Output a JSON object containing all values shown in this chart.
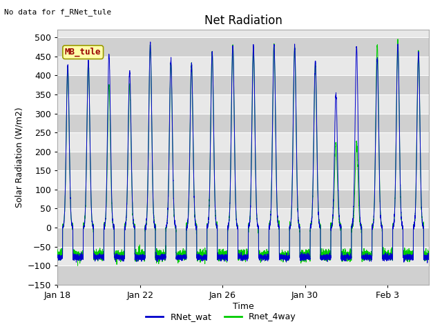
{
  "title": "Net Radiation",
  "subtitle": "No data for f_RNet_tule",
  "xlabel": "Time",
  "ylabel": "Solar Radiation (W/m2)",
  "ylim": [
    -150,
    520
  ],
  "yticks": [
    -150,
    -100,
    -50,
    0,
    50,
    100,
    150,
    200,
    250,
    300,
    350,
    400,
    450,
    500
  ],
  "xtick_labels": [
    "Jan 18",
    "Jan 22",
    "Jan 26",
    "Jan 30",
    "Feb 3"
  ],
  "xtick_positions": [
    0,
    4,
    8,
    12,
    16
  ],
  "legend_entries": [
    "RNet_wat",
    "Rnet_4way"
  ],
  "line_color_blue": "#0000cc",
  "line_color_green": "#00cc00",
  "fig_bg_color": "#ffffff",
  "plot_bg_color": "#e8e8e8",
  "stripe_color": "#d0d0d0",
  "grid_color": "#ffffff",
  "box_facecolor": "#ffffaa",
  "box_edgecolor": "#999900",
  "box_text_color": "#990000",
  "box_label": "MB_tule",
  "num_days": 18,
  "title_fontsize": 12,
  "label_fontsize": 9,
  "tick_fontsize": 9,
  "subtitle_fontsize": 8,
  "blue_day_peaks": [
    425,
    440,
    455,
    410,
    485,
    440,
    430,
    460,
    480,
    475,
    480,
    475,
    435,
    350,
    475,
    445,
    480,
    460
  ],
  "green_day_peaks": [
    420,
    435,
    375,
    375,
    480,
    430,
    430,
    460,
    480,
    475,
    480,
    475,
    430,
    225,
    225,
    480,
    490,
    465
  ],
  "night_val": -78
}
